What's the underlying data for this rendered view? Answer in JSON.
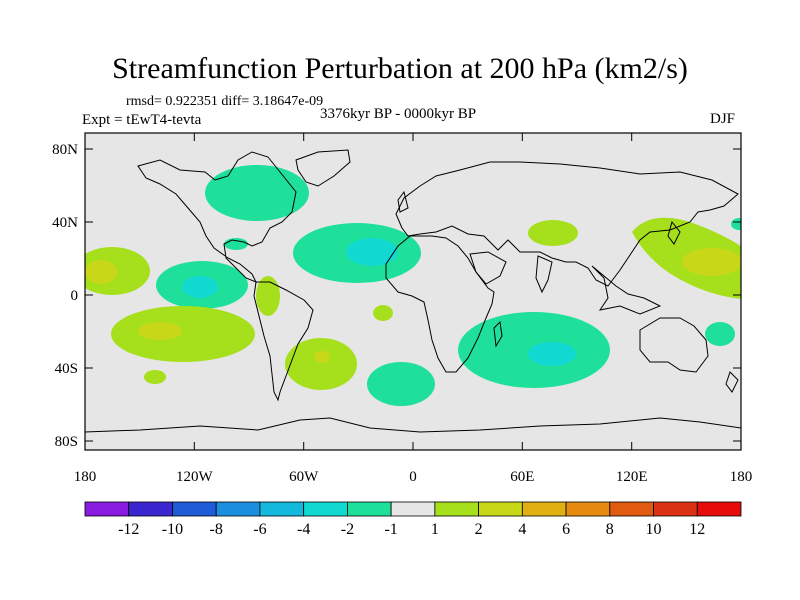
{
  "title": "Streamfunction Perturbation at 200 hPa (km2/s)",
  "stats": "rmsd= 0.922351 diff= 3.18647e-09",
  "period": "3376kyr BP - 0000kyr BP",
  "experiment": "Expt = tEwT4-tevta",
  "season": "DJF",
  "y_ticks": [
    "80N",
    "40N",
    "0",
    "40S",
    "80S"
  ],
  "x_ticks": [
    "180",
    "120W",
    "60W",
    "0",
    "60E",
    "120E",
    "180"
  ],
  "colorbar": {
    "labels": [
      "-12",
      "-10",
      "-8",
      "-6",
      "-4",
      "-2",
      "-1",
      "1",
      "2",
      "4",
      "6",
      "8",
      "10",
      "12"
    ],
    "colors": [
      "#8a1be0",
      "#3c26cf",
      "#1e5bd6",
      "#1a8fe0",
      "#12b9dc",
      "#12d8d2",
      "#1ee09a",
      "#e6e6e6",
      "#a6e01c",
      "#c8d818",
      "#e0b012",
      "#e68a10",
      "#e05a10",
      "#dc3214",
      "#e60c0c"
    ]
  },
  "colors": {
    "land_bg": "#e6e6e6",
    "level_neg1": "#1ee09a",
    "level_neg2": "#12d8d2",
    "level_pos1": "#a6e01c",
    "level_pos2": "#c8d818",
    "level_pos4": "#e0b012"
  }
}
